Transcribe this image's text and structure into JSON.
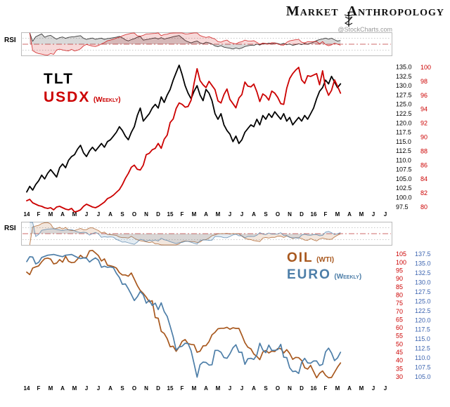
{
  "header": {
    "brand_left": "Market",
    "brand_right": "Anthropology",
    "watermark": "@StockCharts.com"
  },
  "chart_data": [
    {
      "type": "line",
      "timeframe": "Weekly",
      "rsi_label": "RSI",
      "points_per_month": 4,
      "x_ticks": [
        "14",
        "F",
        "M",
        "A",
        "M",
        "J",
        "J",
        "A",
        "S",
        "O",
        "N",
        "D",
        "15",
        "F",
        "M",
        "A",
        "M",
        "J",
        "J",
        "A",
        "S",
        "O",
        "N",
        "D",
        "16",
        "F",
        "M",
        "A",
        "M",
        "J",
        "J"
      ],
      "series": [
        {
          "name": "TLT",
          "suffix": "",
          "color": "#000000",
          "axis_color": "#000000",
          "ylim": [
            96.9,
            136.8
          ],
          "axis_labels": [
            "135.0",
            "132.5",
            "130.0",
            "127.5",
            "125.0",
            "122.5",
            "120.0",
            "117.5",
            "115.0",
            "112.5",
            "110.0",
            "107.5",
            "105.0",
            "102.5",
            "100.0",
            "97.5"
          ],
          "values": [
            101.5,
            103,
            102,
            103.5,
            104.5,
            106,
            105,
            106.5,
            107.5,
            106.5,
            105.5,
            108,
            109,
            108,
            110,
            111,
            111.5,
            113,
            114,
            112,
            111,
            112.5,
            113.5,
            112.5,
            113.5,
            114.5,
            113.5,
            115,
            115.5,
            116.5,
            117.5,
            119,
            118,
            116.5,
            115.5,
            117.5,
            119,
            122,
            124,
            120.5,
            121.5,
            122.5,
            124,
            125,
            124,
            127,
            125.5,
            127.5,
            129,
            131.5,
            133.5,
            135.5,
            133,
            130,
            128,
            126.5,
            128.5,
            130,
            127.5,
            126,
            129,
            128,
            126,
            122.5,
            121,
            122.5,
            119.5,
            118,
            117,
            115,
            116.5,
            114.5,
            115.5,
            117.5,
            118.5,
            119.5,
            119,
            121,
            119.5,
            122,
            121,
            122.5,
            121.5,
            123,
            122,
            121,
            122.5,
            120.5,
            121.5,
            119.5,
            120.5,
            121.5,
            120.5,
            122,
            121,
            122.5,
            124,
            126.5,
            128.5,
            129.5,
            131.5,
            130.5,
            132.5,
            131,
            129.5,
            130.5
          ]
        },
        {
          "name": "USDX",
          "suffix": "(Weekly)",
          "color": "#cc0000",
          "axis_color": "#cc0000",
          "ylim": [
            79.7,
            101.0
          ],
          "axis_labels": [
            "100",
            "98",
            "96",
            "94",
            "92",
            "90",
            "88",
            "86",
            "84",
            "82",
            "80"
          ],
          "values": [
            80.9,
            81.1,
            80.6,
            80.4,
            80.2,
            80.1,
            79.9,
            79.8,
            79.9,
            79.6,
            80.0,
            80.1,
            79.9,
            79.7,
            79.6,
            79.8,
            79.3,
            79.4,
            79.6,
            80.1,
            80.4,
            80.2,
            80.0,
            79.9,
            80.1,
            80.4,
            80.7,
            81.2,
            81.4,
            81.7,
            82.1,
            82.5,
            83.2,
            84.1,
            84.8,
            85.7,
            86.0,
            85.4,
            85.3,
            86.0,
            87.5,
            87.7,
            88.2,
            88.4,
            89.1,
            88.4,
            89.7,
            90.3,
            92.1,
            92.6,
            94.1,
            94.9,
            94.7,
            94.3,
            94.4,
            95.3,
            97.7,
            99.8,
            98.1,
            97.5,
            97.1,
            98.0,
            97.4,
            96.8,
            95.2,
            94.9,
            96.1,
            96.9,
            95.4,
            94.8,
            94.2,
            95.6,
            96.1,
            97.9,
            97.3,
            97.2,
            97.6,
            96.5,
            95.1,
            96.2,
            95.9,
            95.3,
            96.6,
            96.3,
            95.7,
            94.8,
            94.7,
            97.0,
            98.4,
            99.1,
            99.6,
            100.0,
            98.2,
            97.7,
            98.8,
            98.7,
            98.9,
            99.1,
            97.5,
            99.5,
            97.1,
            96.0,
            96.7,
            98.2,
            97.3,
            96.3
          ]
        }
      ]
    },
    {
      "type": "line",
      "timeframe": "Weekly",
      "rsi_label": "RSI",
      "points_per_month": 4,
      "x_ticks": [
        "14",
        "F",
        "M",
        "A",
        "M",
        "J",
        "J",
        "A",
        "S",
        "O",
        "N",
        "D",
        "15",
        "F",
        "M",
        "A",
        "M",
        "J",
        "J",
        "A",
        "S",
        "O",
        "N",
        "D",
        "16",
        "F",
        "M",
        "A",
        "M",
        "J",
        "J"
      ],
      "series": [
        {
          "name": "OIL",
          "suffix": "(WTI)",
          "color": "#a8581e",
          "axis_color": "#cc0000",
          "ylim": [
            27.0,
            108.5
          ],
          "axis_labels": [
            "105",
            "100",
            "95",
            "90",
            "85",
            "80",
            "75",
            "70",
            "65",
            "60",
            "55",
            "50",
            "45",
            "40",
            "35",
            "30"
          ],
          "values": [
            94.0,
            92.5,
            96.5,
            97.2,
            97.8,
            100.3,
            102.2,
            102.6,
            102.0,
            99.0,
            99.5,
            101.7,
            100.1,
            103.7,
            100.6,
            99.8,
            100.0,
            102.0,
            104.3,
            102.7,
            103.0,
            107.0,
            107.3,
            105.7,
            104.1,
            100.8,
            102.1,
            98.2,
            97.9,
            97.4,
            96.5,
            93.7,
            92.3,
            92.3,
            91.5,
            93.5,
            89.7,
            85.8,
            82.8,
            81.0,
            78.7,
            75.8,
            76.5,
            66.2,
            65.8,
            57.8,
            56.5,
            53.3,
            48.4,
            48.7,
            45.6,
            48.2,
            51.7,
            52.8,
            50.3,
            49.8,
            49.6,
            45.0,
            45.7,
            48.9,
            49.1,
            51.6,
            55.7,
            57.2,
            59.4,
            59.7,
            59.7,
            60.3,
            59.1,
            60.0,
            59.6,
            59.6,
            55.5,
            50.9,
            48.1,
            47.1,
            43.9,
            42.5,
            40.5,
            45.2,
            46.1,
            44.6,
            45.7,
            45.5,
            47.3,
            47.3,
            44.6,
            46.6,
            44.3,
            40.7,
            41.9,
            41.7,
            40.0,
            35.6,
            34.7,
            37.0,
            33.2,
            29.4,
            32.2,
            33.6,
            30.9,
            29.4,
            29.6,
            32.8,
            35.9,
            38.5
          ]
        },
        {
          "name": "EURO",
          "suffix": "(Weekly)",
          "color": "#4d7ea8",
          "axis_color": "#3c64b0",
          "ylim": [
            103.7,
            139.0
          ],
          "axis_labels": [
            "137.5",
            "135.0",
            "132.5",
            "130.0",
            "127.5",
            "125.0",
            "122.5",
            "120.0",
            "117.5",
            "115.0",
            "112.5",
            "110.0",
            "107.5",
            "105.0"
          ],
          "values": [
            135.5,
            136.8,
            136.7,
            134.9,
            135.3,
            136.6,
            136.9,
            137.2,
            137.3,
            137.4,
            137.2,
            137.0,
            136.8,
            137.2,
            137.3,
            137.4,
            137.0,
            136.6,
            136.3,
            136.5,
            136.4,
            135.4,
            136.0,
            136.5,
            135.9,
            134.0,
            134.3,
            134.0,
            134.1,
            133.9,
            132.4,
            131.3,
            129.5,
            129.6,
            128.3,
            126.8,
            125.2,
            126.2,
            127.6,
            126.7,
            124.5,
            125.3,
            123.9,
            124.5,
            122.8,
            124.6,
            122.3,
            121.0,
            118.4,
            115.6,
            112.1,
            112.9,
            113.1,
            113.9,
            113.8,
            111.9,
            108.5,
            104.9,
            108.2,
            108.9,
            108.8,
            108.1,
            108.2,
            112.0,
            112.0,
            111.5,
            110.1,
            109.9,
            111.1,
            112.7,
            113.5,
            111.5,
            111.5,
            108.3,
            109.8,
            109.9,
            109.6,
            110.8,
            113.9,
            112.1,
            111.4,
            113.4,
            112.0,
            112.0,
            112.2,
            113.6,
            110.2,
            110.1,
            107.4,
            106.4,
            106.5,
            105.9,
            108.8,
            109.9,
            108.7,
            108.6,
            109.2,
            109.2,
            108.0,
            108.3,
            111.6,
            112.6,
            111.3,
            109.3,
            110.0,
            111.5
          ]
        }
      ]
    }
  ]
}
